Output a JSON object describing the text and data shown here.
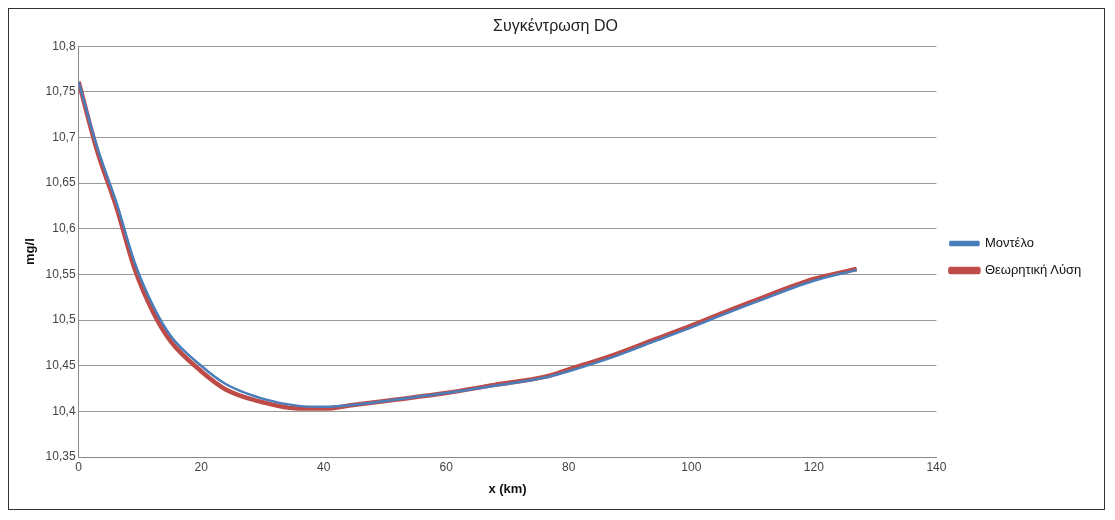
{
  "chart_data": {
    "type": "line",
    "title": "Συγκέντρωση DO",
    "xlabel": "x (km)",
    "ylabel": "mg/l",
    "xlim": [
      0,
      140
    ],
    "xticks": [
      0,
      20,
      40,
      60,
      80,
      100,
      120,
      140
    ],
    "ylim": [
      10.35,
      10.8
    ],
    "yticks": [
      {
        "value": 10.35,
        "label": "10,35"
      },
      {
        "value": 10.4,
        "label": "10,4"
      },
      {
        "value": 10.45,
        "label": "10,45"
      },
      {
        "value": 10.5,
        "label": "10,5"
      },
      {
        "value": 10.55,
        "label": "10,55"
      },
      {
        "value": 10.6,
        "label": "10,6"
      },
      {
        "value": 10.65,
        "label": "10,65"
      },
      {
        "value": 10.7,
        "label": "10,7"
      },
      {
        "value": 10.75,
        "label": "10,75"
      },
      {
        "value": 10.8,
        "label": "10,8"
      }
    ],
    "grid": "y",
    "legend": "right",
    "marker": "none",
    "line_style": "solid",
    "x": [
      0,
      3,
      6.2,
      9.2,
      12.2,
      15.1,
      20,
      24,
      30,
      35.9,
      40,
      44.8,
      50.7,
      60,
      67.9,
      76.2,
      80,
      87.4,
      93.3,
      100,
      105.2,
      111,
      120,
      127
    ],
    "series": [
      {
        "name": "Μοντέλο",
        "color": "#4a7ebb",
        "values": [
          10.761,
          10.69,
          10.628,
          10.562,
          10.515,
          10.482,
          10.45,
          10.43,
          10.414,
          10.406,
          10.405,
          10.407,
          10.412,
          10.42,
          10.428,
          10.437,
          10.444,
          10.46,
          10.475,
          10.492,
          10.506,
          10.521,
          10.543,
          10.555
        ]
      },
      {
        "name": "Θεωρητική Λύση",
        "color": "#be4b48",
        "values": [
          10.761,
          10.686,
          10.623,
          10.555,
          10.508,
          10.476,
          10.444,
          10.424,
          10.41,
          10.403,
          10.403,
          10.407,
          10.412,
          10.42,
          10.429,
          10.438,
          10.446,
          10.462,
          10.477,
          10.494,
          10.508,
          10.523,
          10.545,
          10.556
        ]
      }
    ]
  }
}
